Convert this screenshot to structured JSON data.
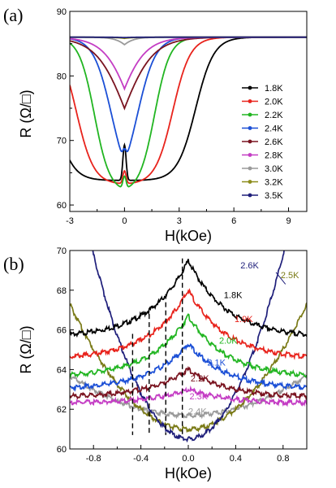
{
  "chart_data": [
    {
      "panel": "(a)",
      "type": "line",
      "title": "",
      "xlabel": "H(kOe)",
      "ylabel": "R (Ω/□)",
      "xlim": [
        -3,
        10
      ],
      "ylim": [
        59,
        90
      ],
      "xticks": [
        "-3",
        "0",
        "3",
        "6",
        "9"
      ],
      "yticks": [
        "60",
        "70",
        "80",
        "90"
      ],
      "grid": false,
      "legend_position": "right",
      "series": [
        {
          "name": "1.8K",
          "color": "#000000",
          "min": 63.8,
          "max": 86.0,
          "half_width": 3.9,
          "width": 0.5,
          "tip": 5.5
        },
        {
          "name": "2.0K",
          "color": "#e8231c",
          "min": 63.2,
          "max": 86.0,
          "half_width": 2.65,
          "width": 0.48,
          "tip": 2.0
        },
        {
          "name": "2.2K",
          "color": "#21b521",
          "min": 62.0,
          "max": 86.0,
          "half_width": 1.65,
          "width": 0.42,
          "tip": 2.0
        },
        {
          "name": "2.4K",
          "color": "#1b4fd6",
          "min": 61.8,
          "max": 86.0,
          "half_width": 0.7,
          "width": 0.5,
          "tip": 2.0
        },
        {
          "name": "2.6K",
          "color": "#7a1420",
          "min": 61.0,
          "max": 86.0,
          "half_width": -0.2,
          "width": 0.85,
          "tip": 0
        },
        {
          "name": "2.8K",
          "color": "#c43dc4",
          "min": 62.4,
          "max": 86.0,
          "half_width": -0.5,
          "width": 0.75,
          "tip": 0
        },
        {
          "name": "3.0K",
          "color": "#9a9a9a",
          "min": 80.8,
          "max": 86.0,
          "half_width": -0.5,
          "width": 0.4,
          "tip": 0
        },
        {
          "name": "3.2K",
          "color": "#8c8c1a",
          "min": 85.0,
          "max": 86.0,
          "half_width": -0.6,
          "width": 0.4,
          "tip": 0
        },
        {
          "name": "3.5K",
          "color": "#1e1e7a",
          "min": 85.7,
          "max": 86.0,
          "half_width": -0.6,
          "width": 0.4,
          "tip": 0
        }
      ],
      "legend": [
        "1.8K",
        "2.0K",
        "2.2K",
        "2.4K",
        "2.6K",
        "2.8K",
        "3.0K",
        "3.2K",
        "3.5K"
      ]
    },
    {
      "panel": "(b)",
      "type": "line",
      "title": "",
      "xlabel": "H(kOe)",
      "ylabel": "R (Ω/□)",
      "xlim": [
        -1.0,
        1.0
      ],
      "ylim": [
        60,
        70
      ],
      "xticks": [
        "-0.8",
        "-0.4",
        "0.0",
        "0.4",
        "0.8"
      ],
      "yticks": [
        "60",
        "62",
        "64",
        "66",
        "68",
        "70"
      ],
      "grid": false,
      "series": [
        {
          "name": "1.8K",
          "color": "#000000",
          "kind": "cusp",
          "peak": 69.5,
          "edge": 65.6
        },
        {
          "name": "1.9K",
          "color": "#e8231c",
          "kind": "cusp",
          "peak": 68.0,
          "edge": 64.5
        },
        {
          "name": "2.0K",
          "color": "#21b521",
          "kind": "cusp",
          "peak": 66.7,
          "edge": 63.6
        },
        {
          "name": "2.1K",
          "color": "#1b4fd6",
          "kind": "cusp",
          "peak": 65.3,
          "edge": 63.0
        },
        {
          "name": "2.2K",
          "color": "#7a1420",
          "kind": "cusp",
          "peak": 64.0,
          "edge": 62.6
        },
        {
          "name": "2.3K",
          "color": "#c43dc4",
          "kind": "cusp",
          "peak": 63.0,
          "edge": 62.3
        },
        {
          "name": "2.4K",
          "color": "#9a9a9a",
          "kind": "dip",
          "center": 61.7,
          "edge": 63.7
        },
        {
          "name": "2.5K",
          "color": "#7a7a16",
          "kind": "dip",
          "center": 61.0,
          "edge": 67.3
        },
        {
          "name": "2.6K",
          "color": "#1e1e7a",
          "kind": "dip",
          "center": 60.5,
          "edge": 75.0
        }
      ],
      "dashed_lines_x": [
        -0.47,
        -0.33,
        -0.19,
        -0.05
      ]
    }
  ]
}
